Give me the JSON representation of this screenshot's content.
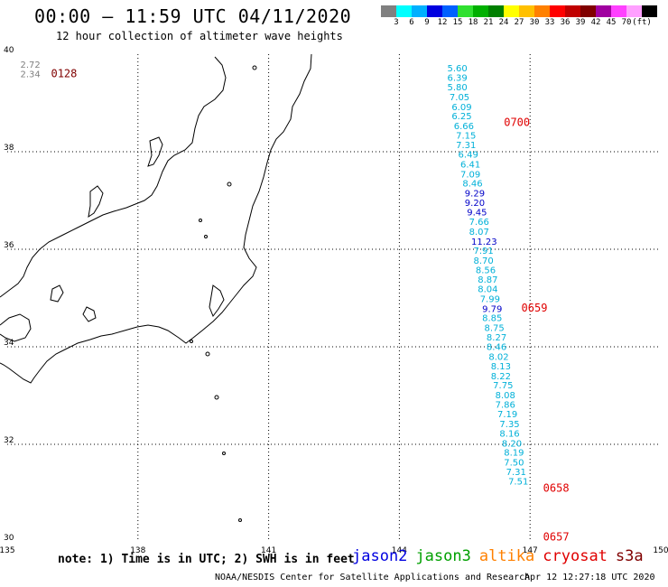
{
  "header": {
    "title": "00:00 – 11:59 UTC 04/11/2020",
    "subtitle": "12 hour collection of altimeter wave heights"
  },
  "scale": {
    "colors": [
      "#808080",
      "#00ffff",
      "#00b0ff",
      "#0000e0",
      "#0060ff",
      "#30e030",
      "#00b000",
      "#008000",
      "#ffff00",
      "#ffc000",
      "#ff8000",
      "#ff0000",
      "#c00000",
      "#800000",
      "#a000a0",
      "#ff40ff",
      "#ffa0ff",
      "#000000"
    ],
    "labels": [
      "3",
      "6",
      "9",
      "12",
      "15",
      "18",
      "21",
      "24",
      "27",
      "30",
      "33",
      "36",
      "39",
      "42",
      "45",
      "70",
      "(ft)"
    ]
  },
  "map": {
    "lon_ticks": [
      "135",
      "138",
      "141",
      "144",
      "147",
      "150"
    ],
    "lat_ticks": [
      "40",
      "38",
      "36",
      "34",
      "32",
      "30"
    ],
    "lon_range": [
      135,
      150
    ],
    "lat_range": [
      30,
      40
    ],
    "color_jason3": "#00b0d8",
    "color_time": "#e00000",
    "left_track": {
      "values": [
        "2.72",
        "2.34"
      ],
      "time": "0128",
      "lat": [
        39.8,
        39.6
      ],
      "lon": 135.3
    },
    "right_track": {
      "times": [
        {
          "label": "0700",
          "lat": 38.6,
          "lon": 146.4
        },
        {
          "label": "0659",
          "lat": 34.8,
          "lon": 146.8
        },
        {
          "label": "0658",
          "lat": 31.1,
          "lon": 147.3
        },
        {
          "label": "0657",
          "lat": 30.1,
          "lon": 147.3
        }
      ],
      "points": [
        {
          "v": "5.60",
          "lat": 39.72,
          "lon": 145.1,
          "c": "#00b0d8"
        },
        {
          "v": "6.39",
          "lat": 39.53,
          "lon": 145.1,
          "c": "#00b0d8"
        },
        {
          "v": "5.80",
          "lat": 39.33,
          "lon": 145.1,
          "c": "#00b0d8"
        },
        {
          "v": "7.05",
          "lat": 39.13,
          "lon": 145.15,
          "c": "#00b0d8"
        },
        {
          "v": "6.09",
          "lat": 38.93,
          "lon": 145.2,
          "c": "#00b0d8"
        },
        {
          "v": "6.25",
          "lat": 38.74,
          "lon": 145.2,
          "c": "#00b0d8"
        },
        {
          "v": "6.66",
          "lat": 38.54,
          "lon": 145.25,
          "c": "#00b0d8"
        },
        {
          "v": "7.15",
          "lat": 38.34,
          "lon": 145.3,
          "c": "#00b0d8"
        },
        {
          "v": "7.31",
          "lat": 38.15,
          "lon": 145.3,
          "c": "#00b0d8"
        },
        {
          "v": "6.49",
          "lat": 37.95,
          "lon": 145.35,
          "c": "#00b0d8"
        },
        {
          "v": "6.41",
          "lat": 37.75,
          "lon": 145.4,
          "c": "#00b0d8"
        },
        {
          "v": "7.09",
          "lat": 37.55,
          "lon": 145.4,
          "c": "#00b0d8"
        },
        {
          "v": "8.46",
          "lat": 37.36,
          "lon": 145.45,
          "c": "#00b0d8"
        },
        {
          "v": "9.29",
          "lat": 37.16,
          "lon": 145.5,
          "c": "#0000c8"
        },
        {
          "v": "9.20",
          "lat": 36.96,
          "lon": 145.5,
          "c": "#0000c8"
        },
        {
          "v": "9.45",
          "lat": 36.77,
          "lon": 145.55,
          "c": "#0000c8"
        },
        {
          "v": "7.66",
          "lat": 36.57,
          "lon": 145.6,
          "c": "#00b0d8"
        },
        {
          "v": "8.07",
          "lat": 36.37,
          "lon": 145.6,
          "c": "#00b0d8"
        },
        {
          "v": "11.23",
          "lat": 36.17,
          "lon": 145.65,
          "c": "#0000c8"
        },
        {
          "v": "7.91",
          "lat": 35.98,
          "lon": 145.7,
          "c": "#00b0d8"
        },
        {
          "v": "8.70",
          "lat": 35.78,
          "lon": 145.7,
          "c": "#00b0d8"
        },
        {
          "v": "8.56",
          "lat": 35.58,
          "lon": 145.75,
          "c": "#00b0d8"
        },
        {
          "v": "8.87",
          "lat": 35.39,
          "lon": 145.8,
          "c": "#00b0d8"
        },
        {
          "v": "8.04",
          "lat": 35.19,
          "lon": 145.8,
          "c": "#00b0d8"
        },
        {
          "v": "7.99",
          "lat": 34.99,
          "lon": 145.85,
          "c": "#00b0d8"
        },
        {
          "v": "9.79",
          "lat": 34.79,
          "lon": 145.9,
          "c": "#0000c8"
        },
        {
          "v": "8.85",
          "lat": 34.6,
          "lon": 145.9,
          "c": "#00b0d8"
        },
        {
          "v": "8.75",
          "lat": 34.4,
          "lon": 145.95,
          "c": "#00b0d8"
        },
        {
          "v": "8.27",
          "lat": 34.2,
          "lon": 146.0,
          "c": "#00b0d8"
        },
        {
          "v": "8.46",
          "lat": 34.01,
          "lon": 146.0,
          "c": "#00b0d8"
        },
        {
          "v": "8.02",
          "lat": 33.81,
          "lon": 146.05,
          "c": "#00b0d8"
        },
        {
          "v": "8.13",
          "lat": 33.61,
          "lon": 146.1,
          "c": "#00b0d8"
        },
        {
          "v": "8.22",
          "lat": 33.41,
          "lon": 146.1,
          "c": "#00b0d8"
        },
        {
          "v": "7.75",
          "lat": 33.22,
          "lon": 146.15,
          "c": "#00b0d8"
        },
        {
          "v": "8.08",
          "lat": 33.02,
          "lon": 146.2,
          "c": "#00b0d8"
        },
        {
          "v": "7.86",
          "lat": 32.82,
          "lon": 146.2,
          "c": "#00b0d8"
        },
        {
          "v": "7.19",
          "lat": 32.63,
          "lon": 146.25,
          "c": "#00b0d8"
        },
        {
          "v": "7.35",
          "lat": 32.43,
          "lon": 146.3,
          "c": "#00b0d8"
        },
        {
          "v": "8.16",
          "lat": 32.23,
          "lon": 146.3,
          "c": "#00b0d8"
        },
        {
          "v": "8.20",
          "lat": 32.03,
          "lon": 146.35,
          "c": "#00b0d8"
        },
        {
          "v": "8.19",
          "lat": 31.84,
          "lon": 146.4,
          "c": "#00b0d8"
        },
        {
          "v": "7.50",
          "lat": 31.64,
          "lon": 146.4,
          "c": "#00b0d8"
        },
        {
          "v": "7.31",
          "lat": 31.44,
          "lon": 146.45,
          "c": "#00b0d8"
        },
        {
          "v": "7.51",
          "lat": 31.25,
          "lon": 146.5,
          "c": "#00b0d8"
        }
      ]
    }
  },
  "note": "note: 1) Time is in UTC; 2) SWH is in feet",
  "satellites": [
    {
      "name": "jason2",
      "color": "#0000e0"
    },
    {
      "name": "jason3",
      "color": "#00a000"
    },
    {
      "name": "altika",
      "color": "#ff8000"
    },
    {
      "name": "cryosat",
      "color": "#e00000"
    },
    {
      "name": "s3a",
      "color": "#800000"
    }
  ],
  "footer": {
    "credit": "NOAA/NESDIS Center for Satellite Applications and Research",
    "timestamp": "Apr 12 12:27:18 UTC 2020"
  }
}
